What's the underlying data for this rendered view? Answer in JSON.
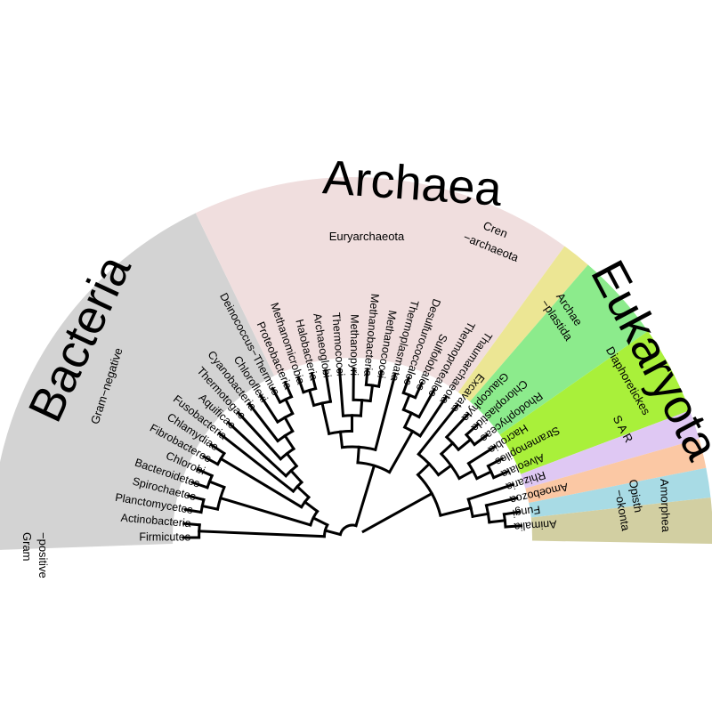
{
  "domains": {
    "bacteria": "Bacteria",
    "archaea": "Archaea",
    "eukaryota": "Eukaryota"
  },
  "groups": {
    "gram_positive": [
      "Gram",
      "−positive"
    ],
    "gram_negative": "Gram−negative",
    "euryarchaeota": "Euryarchaeota",
    "crenarchaeota": [
      "Cren",
      "−archaeota"
    ],
    "archaeplastida": [
      "Archae",
      "−plastida"
    ],
    "diaphoretickes": "Diaphoretickes",
    "sar": "S A R",
    "amorphea": "Amorphea",
    "opisthokonta": [
      "Opisth",
      "−okonta"
    ]
  },
  "taxa": [
    {
      "name": "Firmicutes",
      "group": "bacteria"
    },
    {
      "name": "Actinobacteria",
      "group": "bacteria"
    },
    {
      "name": "Planctomycetes",
      "group": "bacteria"
    },
    {
      "name": "Spirochaetes",
      "group": "bacteria"
    },
    {
      "name": "Bacteroidetes",
      "group": "bacteria"
    },
    {
      "name": "Chlorobi",
      "group": "bacteria"
    },
    {
      "name": "Fibrobacteres",
      "group": "bacteria"
    },
    {
      "name": "Chlamydiae",
      "group": "bacteria"
    },
    {
      "name": "Fusobacteria",
      "group": "bacteria"
    },
    {
      "name": "Aquificae",
      "group": "bacteria"
    },
    {
      "name": "Thermotogae",
      "group": "bacteria"
    },
    {
      "name": "Cyanobacteria",
      "group": "bacteria"
    },
    {
      "name": "Chloroflexi",
      "group": "bacteria"
    },
    {
      "name": "Deinococcus−Thermus",
      "group": "bacteria"
    },
    {
      "name": "Proteobacteria",
      "group": "archaea"
    },
    {
      "name": "Methanomicrobia",
      "group": "archaea"
    },
    {
      "name": "Halobacteria",
      "group": "archaea"
    },
    {
      "name": "Archaeoglobi",
      "group": "archaea"
    },
    {
      "name": "Thermococci",
      "group": "archaea"
    },
    {
      "name": "Methanopyri",
      "group": "archaea"
    },
    {
      "name": "Methanobacteria",
      "group": "archaea"
    },
    {
      "name": "Methanococci",
      "group": "archaea"
    },
    {
      "name": "Thermoplasmata",
      "group": "archaea"
    },
    {
      "name": "Desulfurococcales",
      "group": "archaea"
    },
    {
      "name": "Sulfolobales",
      "group": "archaea"
    },
    {
      "name": "Thermoproteales",
      "group": "archaea"
    },
    {
      "name": "Thaumarchaeota",
      "group": "archaea"
    },
    {
      "name": "Excavata",
      "group": "excavata"
    },
    {
      "name": "Glaucophyta",
      "group": "archaeplastida"
    },
    {
      "name": "Chloroplastida",
      "group": "archaeplastida"
    },
    {
      "name": "Rhodophyceae",
      "group": "archaeplastida"
    },
    {
      "name": "Hacrobia",
      "group": "diaphoretickes"
    },
    {
      "name": "Stramenopiles",
      "group": "diaphoretickes"
    },
    {
      "name": "Alveolata",
      "group": "diaphoretickes"
    },
    {
      "name": "Rhizaria",
      "group": "rhizaria"
    },
    {
      "name": "Amoebozoa",
      "group": "amoebozoa"
    },
    {
      "name": "Fungi",
      "group": "fungi"
    },
    {
      "name": "Animalia",
      "group": "animalia"
    }
  ],
  "colors": {
    "bacteria": "#d3d3d3",
    "archaea": "#f0dede",
    "excavata": "#ece694",
    "archaeplastida": "#8ceb8c",
    "diaphoretickes": "#a9f03a",
    "rhizaria": "#dfc8f3",
    "amoebozoa": "#fbc8a4",
    "fungi": "#a8dbe5",
    "animalia": "#d2cfa2",
    "lines": "#000000"
  }
}
